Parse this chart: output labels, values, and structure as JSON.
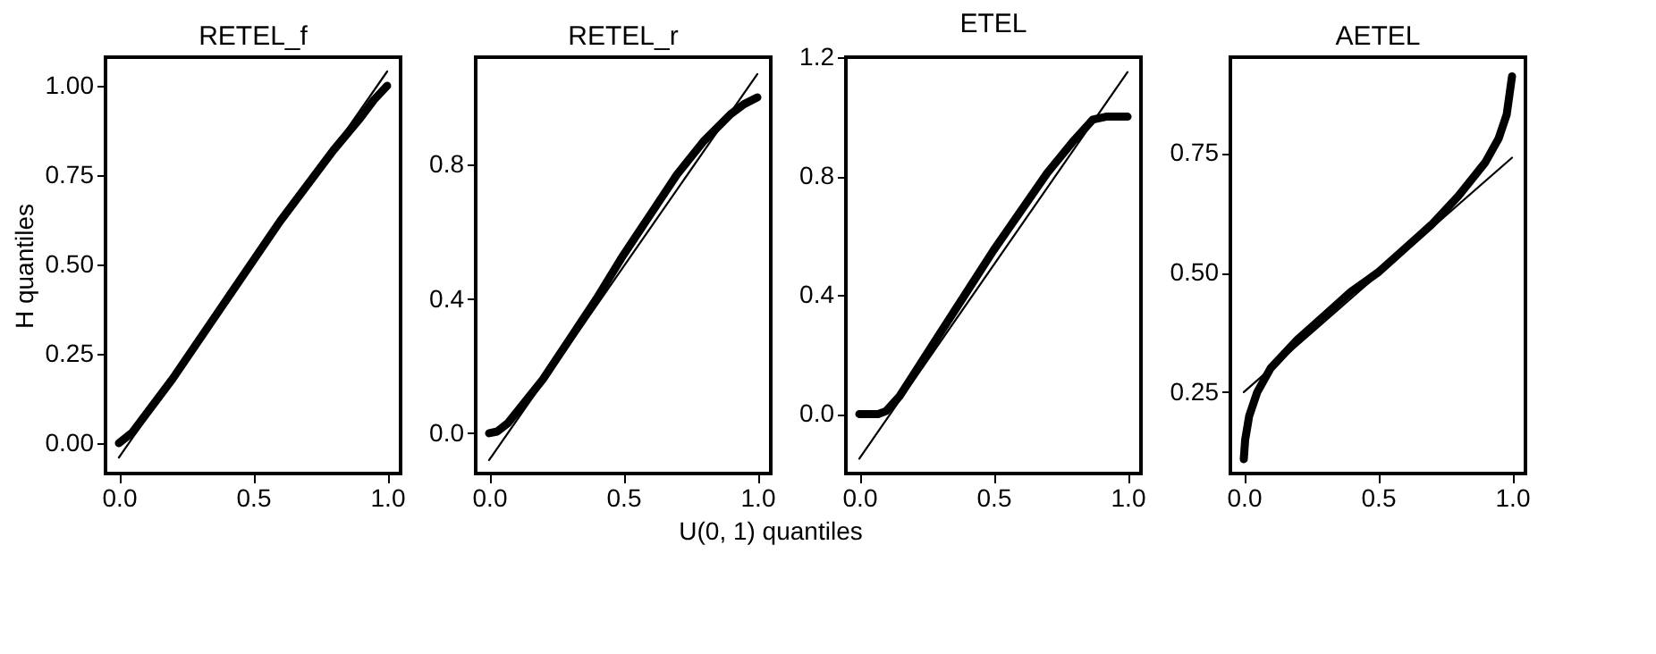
{
  "chart_data": [
    {
      "type": "line",
      "title": "RETEL_f",
      "ylabel": "H quantiles",
      "xlim": [
        -0.05,
        1.05
      ],
      "xticks": [
        {
          "value": 0,
          "label": "0.0"
        },
        {
          "value": 0.5,
          "label": "0.5"
        },
        {
          "value": 1,
          "label": "1.0"
        }
      ],
      "ylim": [
        -0.085,
        1.08
      ],
      "yticks": [
        {
          "value": 0,
          "label": "0.00"
        },
        {
          "value": 0.25,
          "label": "0.25"
        },
        {
          "value": 0.5,
          "label": "0.50"
        },
        {
          "value": 0.75,
          "label": "0.75"
        },
        {
          "value": 1,
          "label": "1.00"
        }
      ],
      "grid": false,
      "series": [
        {
          "color": "#000000",
          "x": [
            0,
            0.05,
            0.1,
            0.2,
            0.3,
            0.4,
            0.5,
            0.6,
            0.7,
            0.8,
            0.9,
            0.95,
            1
          ],
          "values": [
            0,
            0.03,
            0.08,
            0.18,
            0.29,
            0.4,
            0.51,
            0.62,
            0.72,
            0.82,
            0.91,
            0.96,
            1.0
          ]
        },
        {
          "color": "#000000",
          "x": [
            0,
            1
          ],
          "values": [
            -0.04,
            1.04
          ]
        }
      ]
    },
    {
      "type": "line",
      "title": "RETEL_r",
      "xlabel": "U(0, 1) quantiles",
      "xlim": [
        -0.05,
        1.05
      ],
      "xticks": [
        {
          "value": 0,
          "label": "0.0"
        },
        {
          "value": 0.5,
          "label": "0.5"
        },
        {
          "value": 1,
          "label": "1.0"
        }
      ],
      "ylim": [
        -0.12,
        1.12
      ],
      "yticks": [
        {
          "value": 0,
          "label": "0.0"
        },
        0.4,
        0.8
      ],
      "grid": false,
      "series": [
        {
          "color": "#000000",
          "x": [
            0,
            0.03,
            0.07,
            0.1,
            0.2,
            0.3,
            0.4,
            0.5,
            0.6,
            0.7,
            0.8,
            0.9,
            0.95,
            1
          ],
          "values": [
            0,
            0.005,
            0.03,
            0.06,
            0.16,
            0.28,
            0.4,
            0.53,
            0.65,
            0.77,
            0.87,
            0.95,
            0.98,
            1.0
          ]
        },
        {
          "color": "#000000",
          "x": [
            0,
            1
          ],
          "values": [
            -0.08,
            1.07
          ]
        }
      ]
    },
    {
      "type": "line",
      "title": "ETEL",
      "xlim": [
        -0.05,
        1.05
      ],
      "xticks": [
        {
          "value": 0,
          "label": "0.0"
        },
        {
          "value": 0.5,
          "label": "0.5"
        },
        {
          "value": 1,
          "label": "1.0"
        }
      ],
      "ylim": [
        -0.2,
        1.2
      ],
      "yticks": [
        {
          "value": 0,
          "label": "0.0"
        },
        0.4,
        0.8,
        1.2
      ],
      "grid": false,
      "series": [
        {
          "color": "#000000",
          "x": [
            0,
            0.07,
            0.1,
            0.15,
            0.2,
            0.3,
            0.4,
            0.5,
            0.6,
            0.7,
            0.8,
            0.87,
            0.92,
            1
          ],
          "values": [
            0,
            0,
            0.01,
            0.06,
            0.13,
            0.27,
            0.41,
            0.55,
            0.68,
            0.81,
            0.92,
            0.99,
            1.0,
            1.0
          ]
        },
        {
          "color": "#000000",
          "x": [
            0,
            1
          ],
          "values": [
            -0.15,
            1.15
          ]
        }
      ]
    },
    {
      "type": "line",
      "title": "AETEL",
      "xlim": [
        -0.05,
        1.05
      ],
      "xticks": [
        {
          "value": 0,
          "label": "0.0"
        },
        {
          "value": 0.5,
          "label": "0.5"
        },
        {
          "value": 1,
          "label": "1.0"
        }
      ],
      "ylim": [
        0.08,
        0.95
      ],
      "yticks": [
        0.25,
        {
          "value": 0.5,
          "label": "0.50"
        },
        0.75
      ],
      "grid": false,
      "series": [
        {
          "color": "#000000",
          "x": [
            0,
            0.005,
            0.02,
            0.05,
            0.1,
            0.2,
            0.3,
            0.4,
            0.5,
            0.6,
            0.7,
            0.8,
            0.9,
            0.95,
            0.98,
            1
          ],
          "values": [
            0.11,
            0.15,
            0.2,
            0.25,
            0.3,
            0.36,
            0.41,
            0.46,
            0.5,
            0.55,
            0.6,
            0.66,
            0.73,
            0.78,
            0.83,
            0.91
          ]
        },
        {
          "color": "#000000",
          "x": [
            0,
            1
          ],
          "values": [
            0.25,
            0.74
          ]
        }
      ]
    }
  ]
}
